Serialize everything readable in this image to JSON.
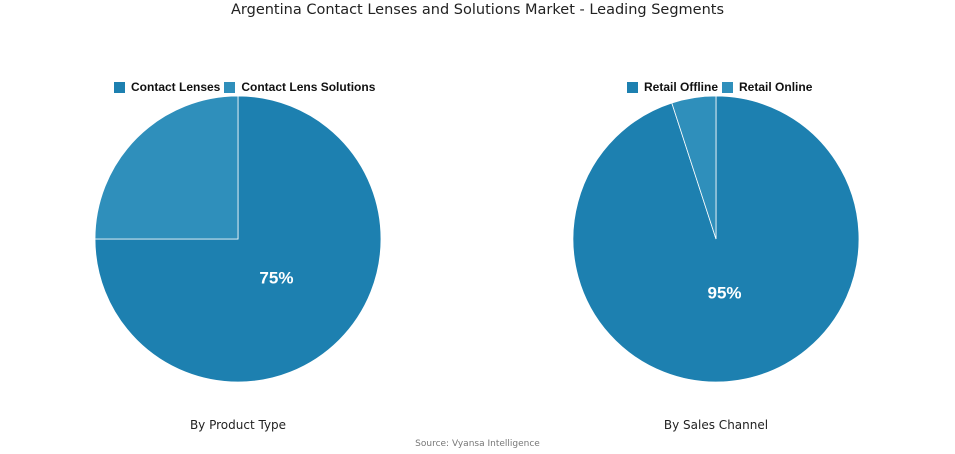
{
  "title": "Argentina Contact Lenses and Solutions Market - Leading Segments",
  "source": "Source: Vyansa Intelligence",
  "chart_data": [
    {
      "type": "pie",
      "subtitle": "By Product Type",
      "legend_position": "top",
      "labels": [
        "Contact Lenses",
        "Contact Lens Solutions"
      ],
      "values": [
        75,
        25
      ],
      "data_labels": [
        "75%",
        ""
      ],
      "colors": [
        "#1d80b0",
        "#2f8fbb"
      ]
    },
    {
      "type": "pie",
      "subtitle": "By Sales Channel",
      "legend_position": "top",
      "labels": [
        "Retail Offline",
        "Retail Online"
      ],
      "values": [
        95,
        5
      ],
      "data_labels": [
        "95%",
        ""
      ],
      "colors": [
        "#1d80b0",
        "#2f8fbb"
      ]
    }
  ]
}
